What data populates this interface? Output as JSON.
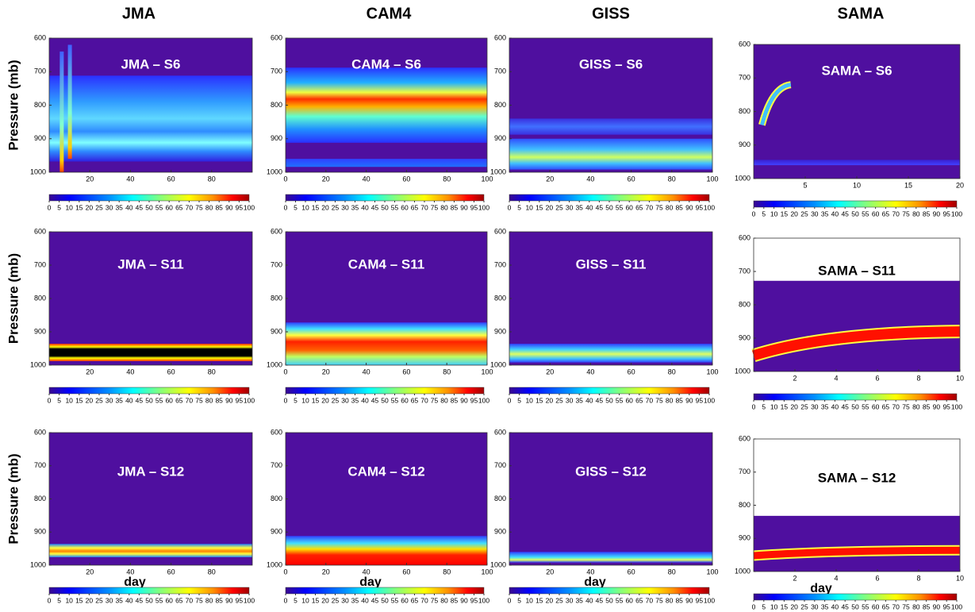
{
  "column_titles": [
    "JMA",
    "CAM4",
    "GISS",
    "SAMA"
  ],
  "y_label": "Pressure (mb)",
  "x_label": "day",
  "colorbar_lim": [
    0,
    100
  ],
  "colorbar_ticks": [
    0,
    5,
    10,
    15,
    20,
    25,
    30,
    35,
    40,
    45,
    50,
    55,
    60,
    65,
    70,
    75,
    80,
    85,
    90,
    95,
    100
  ],
  "chart_data": [
    {
      "type": "heatmap",
      "title": "JMA – S6",
      "xlim": [
        0,
        100
      ],
      "xticks": [
        20,
        40,
        60,
        80
      ],
      "ylim": [
        1000,
        600
      ],
      "yticks": [
        600,
        700,
        800,
        900,
        1000
      ]
    },
    {
      "type": "heatmap",
      "title": "CAM4 – S6",
      "xlim": [
        0,
        100
      ],
      "xticks": [
        0,
        20,
        40,
        60,
        80,
        100
      ],
      "ylim": [
        1000,
        600
      ],
      "yticks": [
        600,
        700,
        800,
        900,
        1000
      ]
    },
    {
      "type": "heatmap",
      "title": "GISS – S6",
      "xlim": [
        0,
        100
      ],
      "xticks": [
        20,
        40,
        60,
        80,
        100
      ],
      "ylim": [
        1000,
        600
      ],
      "yticks": [
        600,
        700,
        800,
        900,
        1000
      ]
    },
    {
      "type": "heatmap",
      "title": "SAMA – S6",
      "xlim": [
        0,
        20
      ],
      "xticks": [
        5,
        10,
        15,
        20
      ],
      "ylim": [
        1000,
        600
      ],
      "yticks": [
        600,
        700,
        800,
        900,
        1000
      ]
    },
    {
      "type": "heatmap",
      "title": "JMA – S11",
      "xlim": [
        0,
        100
      ],
      "xticks": [
        20,
        40,
        60,
        80
      ],
      "ylim": [
        1000,
        600
      ],
      "yticks": [
        600,
        700,
        800,
        900,
        1000
      ]
    },
    {
      "type": "heatmap",
      "title": "CAM4 – S11",
      "xlim": [
        0,
        100
      ],
      "xticks": [
        0,
        20,
        40,
        60,
        80,
        100
      ],
      "ylim": [
        1000,
        600
      ],
      "yticks": [
        600,
        700,
        800,
        900,
        1000
      ]
    },
    {
      "type": "heatmap",
      "title": "GISS – S11",
      "xlim": [
        0,
        100
      ],
      "xticks": [
        20,
        40,
        60,
        80,
        100
      ],
      "ylim": [
        1000,
        600
      ],
      "yticks": [
        600,
        700,
        800,
        900,
        1000
      ]
    },
    {
      "type": "heatmap",
      "title": "SAMA – S11",
      "xlim": [
        0,
        10
      ],
      "xticks": [
        2,
        4,
        6,
        8,
        10
      ],
      "ylim": [
        1000,
        600
      ],
      "yticks": [
        600,
        700,
        800,
        900,
        1000
      ]
    },
    {
      "type": "heatmap",
      "title": "JMA – S12",
      "xlim": [
        0,
        100
      ],
      "xticks": [
        20,
        40,
        60,
        80
      ],
      "ylim": [
        1000,
        600
      ],
      "yticks": [
        600,
        700,
        800,
        900,
        1000
      ]
    },
    {
      "type": "heatmap",
      "title": "CAM4 – S12",
      "xlim": [
        0,
        100
      ],
      "xticks": [
        0,
        20,
        40,
        60,
        80,
        100
      ],
      "ylim": [
        1000,
        600
      ],
      "yticks": [
        600,
        700,
        800,
        900,
        1000
      ]
    },
    {
      "type": "heatmap",
      "title": "GISS – S12",
      "xlim": [
        0,
        100
      ],
      "xticks": [
        20,
        40,
        60,
        80,
        100
      ],
      "ylim": [
        1000,
        600
      ],
      "yticks": [
        600,
        700,
        800,
        900,
        1000
      ]
    },
    {
      "type": "heatmap",
      "title": "SAMA – S12",
      "xlim": [
        0,
        10
      ],
      "xticks": [
        2,
        4,
        6,
        8,
        10
      ],
      "ylim": [
        1000,
        600
      ],
      "yticks": [
        600,
        700,
        800,
        900,
        1000
      ]
    }
  ]
}
